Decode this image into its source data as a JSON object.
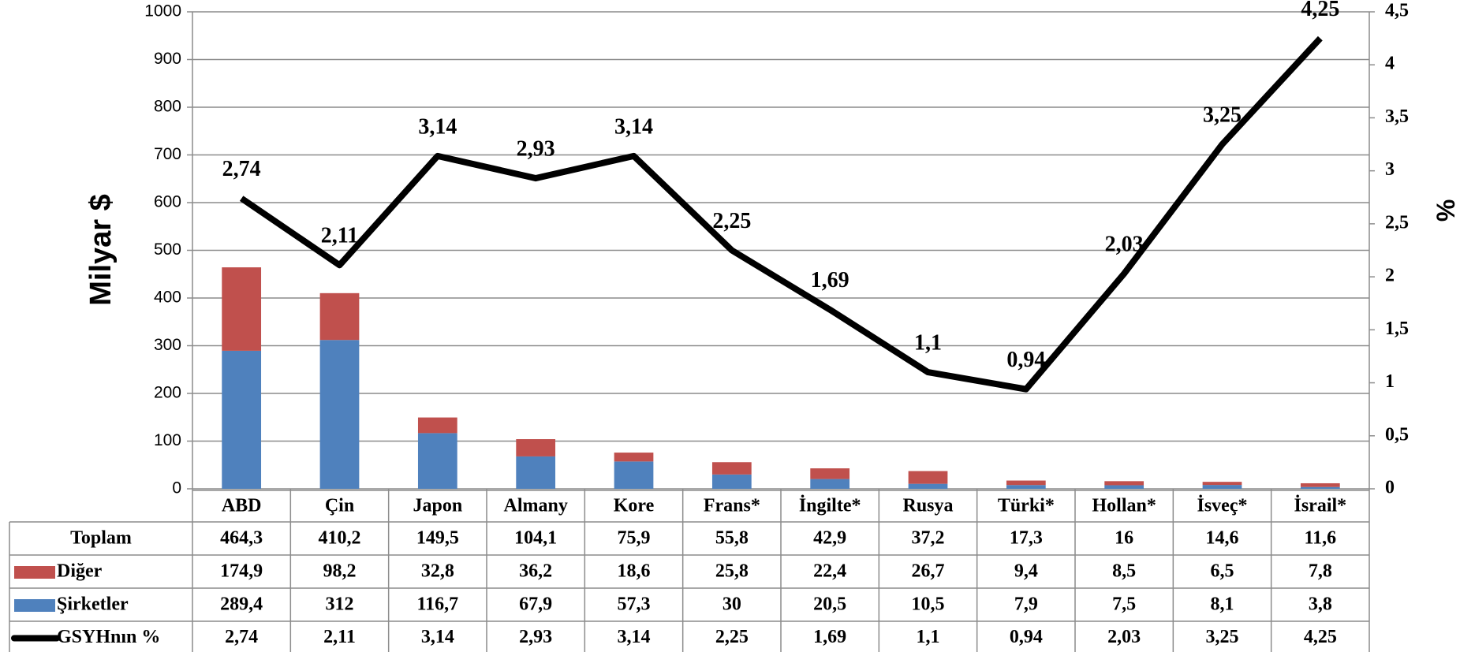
{
  "chart_data": {
    "type": "bar",
    "stacked": true,
    "y_label": "Milyar $",
    "y2_label": "%",
    "categories": [
      "ABD",
      "Çin",
      "Japon",
      "Almany",
      "Kore",
      "Frans*",
      "İngilte*",
      "Rusya",
      "Türki*",
      "Hollan*",
      "İsveç*",
      "İsrail*"
    ],
    "totals": {
      "name": "Toplam",
      "values": [
        464.3,
        410.2,
        149.5,
        104.1,
        75.9,
        55.8,
        42.9,
        37.2,
        17.3,
        16,
        14.6,
        11.6
      ],
      "value_labels": [
        "464,3",
        "410,2",
        "149,5",
        "104,1",
        "75,9",
        "55,8",
        "42,9",
        "37,2",
        "17,3",
        "16",
        "14,6",
        "11,6"
      ]
    },
    "series": [
      {
        "name": "Diğer",
        "type": "bar",
        "color": "#c0504d",
        "values": [
          174.9,
          98.2,
          32.8,
          36.2,
          18.6,
          25.8,
          22.4,
          26.7,
          9.4,
          8.5,
          6.5,
          7.8
        ],
        "value_labels": [
          "174,9",
          "98,2",
          "32,8",
          "36,2",
          "18,6",
          "25,8",
          "22,4",
          "26,7",
          "9,4",
          "8,5",
          "6,5",
          "7,8"
        ]
      },
      {
        "name": "Şirketler",
        "type": "bar",
        "color": "#4f81bd",
        "values": [
          289.4,
          312,
          116.7,
          67.9,
          57.3,
          30,
          20.5,
          10.5,
          7.9,
          7.5,
          8.1,
          3.8
        ],
        "value_labels": [
          "289,4",
          "312",
          "116,7",
          "67,9",
          "57,3",
          "30",
          "20,5",
          "10,5",
          "7,9",
          "7,5",
          "8,1",
          "3,8"
        ]
      },
      {
        "name": "GSYHnın %",
        "type": "line",
        "axis": "y2",
        "color": "#000000",
        "values": [
          2.74,
          2.11,
          3.14,
          2.93,
          3.14,
          2.25,
          1.69,
          1.1,
          0.94,
          2.03,
          3.25,
          4.25
        ],
        "value_labels": [
          "2,74",
          "2,11",
          "3,14",
          "2,93",
          "3,14",
          "2,25",
          "1,69",
          "1,1",
          "0,94",
          "2,03",
          "3,25",
          "4,25"
        ]
      }
    ],
    "ylim": [
      0,
      1000
    ],
    "yticks": [
      0,
      100,
      200,
      300,
      400,
      500,
      600,
      700,
      800,
      900,
      1000
    ],
    "y2lim": [
      0,
      4.5
    ],
    "y2ticks": [
      0,
      {
        "value": 0.5,
        "label": "0,5"
      },
      1,
      {
        "value": 1.5,
        "label": "1,5"
      },
      2,
      {
        "value": 2.5,
        "label": "2,5"
      },
      3,
      {
        "value": 3.5,
        "label": "3,5"
      },
      4,
      {
        "value": 4.5,
        "label": "4,5"
      }
    ],
    "grid": true
  }
}
